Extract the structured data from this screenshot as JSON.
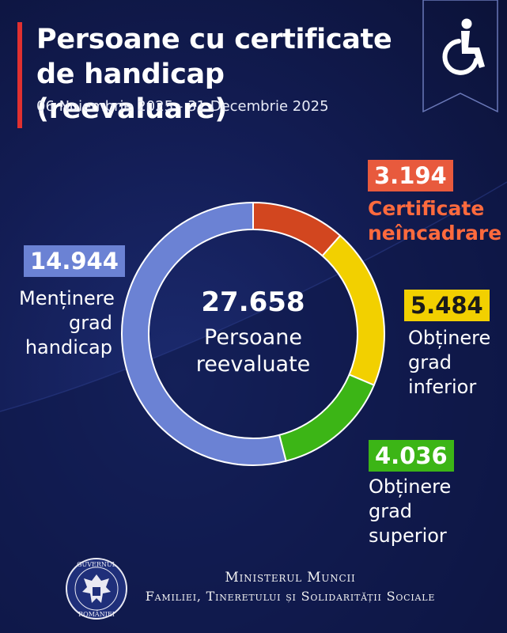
{
  "title": "Persoane cu certificate\nde handicap (reevaluare)",
  "subtitle": "06 Noiembrie 2025 - 31 Decembrie 2025",
  "badge_icon": "wheelchair-icon",
  "center": {
    "value": "27.658",
    "label": "Persoane\nreevaluate"
  },
  "segments": [
    {
      "value_label": "3.194",
      "label": "Certificate\nneîncadrare",
      "color": "#d2461f"
    },
    {
      "value_label": "5.484",
      "label": "Obținere\ngrad\ninferior",
      "color": "#f2d000"
    },
    {
      "value_label": "4.036",
      "label": "Obținere\ngrad\nsuperior",
      "color": "#3cb516"
    },
    {
      "value_label": "14.944",
      "label": "Menținere\ngrad\nhandicap",
      "color": "#6b82d4"
    }
  ],
  "footer": {
    "line1": "Ministerul Muncii",
    "line2": "Familiei, Tineretului și Solidarității Sociale",
    "seal_text_top": "GUVERNUL",
    "seal_text_bottom": "ROMÂNIEI"
  },
  "chart_data": {
    "type": "pie",
    "categories": [
      "Certificate neîncadrare",
      "Obținere grad inferior",
      "Obținere grad superior",
      "Menținere grad handicap"
    ],
    "values": [
      3194,
      5484,
      4036,
      14944
    ],
    "total": 27658,
    "title": "Persoane cu certificate de handicap (reevaluare)"
  }
}
